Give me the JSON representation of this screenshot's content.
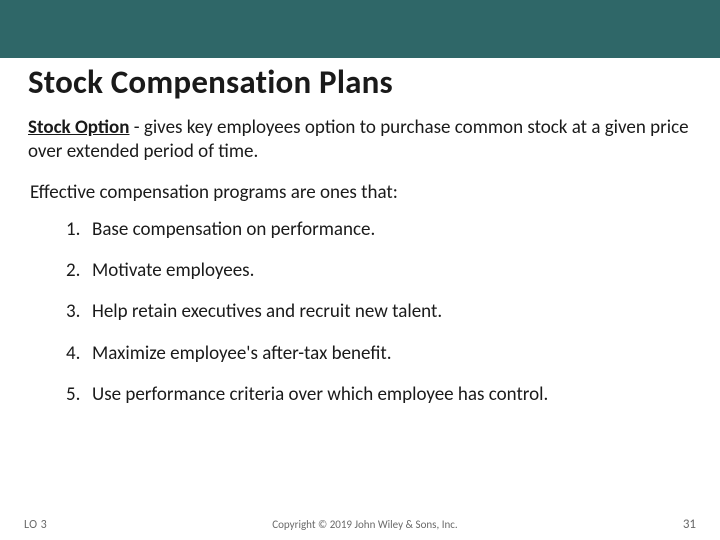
{
  "top_band_color": "#2f6768",
  "title": "Stock Compensation Plans",
  "lead_bold": "Stock Option",
  "lead_rest": " - gives key employees option to purchase common stock at a given price over extended period of time.",
  "subhead": "Effective compensation programs are ones that:",
  "points": [
    "Base compensation on performance.",
    "Motivate employees.",
    "Help retain executives and recruit new talent.",
    "Maximize employee's after-tax benefit.",
    "Use performance criteria over which employee has control."
  ],
  "footer": {
    "lo": "LO 3",
    "copyright": "Copyright © 2019 John Wiley & Sons, Inc.",
    "page": "31"
  }
}
